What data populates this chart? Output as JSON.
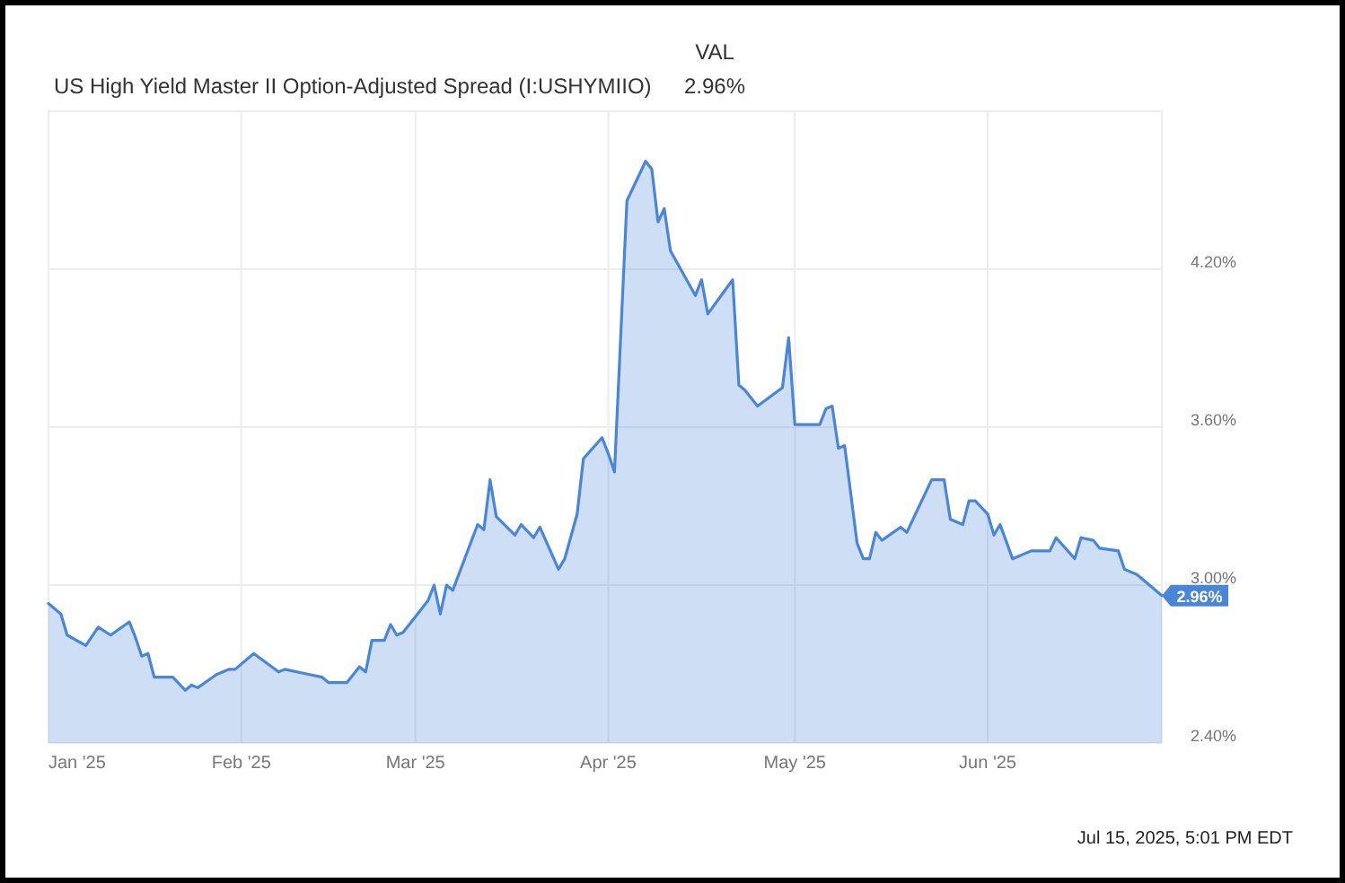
{
  "chart_data": {
    "type": "area",
    "title": "US High Yield Master II Option-Adjusted Spread (I:USHYMIIO)",
    "annotations": [
      "VAL",
      "2.96%",
      {
        "text": "2.96%",
        "x": "2025-06-29",
        "y": 2.96
      },
      "Jul 15, 2025, 5:01 PM EDT"
    ],
    "x": [
      "2025-01-01",
      "2025-01-03",
      "2025-01-04",
      "2025-01-07",
      "2025-01-09",
      "2025-01-11",
      "2025-01-14",
      "2025-01-15",
      "2025-01-16",
      "2025-01-17",
      "2025-01-18",
      "2025-01-21",
      "2025-01-23",
      "2025-01-24",
      "2025-01-25",
      "2025-01-28",
      "2025-01-30",
      "2025-01-31",
      "2025-02-03",
      "2025-02-07",
      "2025-02-08",
      "2025-02-12",
      "2025-02-14",
      "2025-02-15",
      "2025-02-18",
      "2025-02-20",
      "2025-02-21",
      "2025-02-22",
      "2025-02-24",
      "2025-02-25",
      "2025-02-26",
      "2025-02-27",
      "2025-03-01",
      "2025-03-03",
      "2025-03-04",
      "2025-03-05",
      "2025-03-06",
      "2025-03-07",
      "2025-03-11",
      "2025-03-12",
      "2025-03-13",
      "2025-03-14",
      "2025-03-17",
      "2025-03-18",
      "2025-03-20",
      "2025-03-21",
      "2025-03-24",
      "2025-03-25",
      "2025-03-27",
      "2025-03-28",
      "2025-03-31",
      "2025-04-01",
      "2025-04-02",
      "2025-04-04",
      "2025-04-07",
      "2025-04-08",
      "2025-04-09",
      "2025-04-10",
      "2025-04-11",
      "2025-04-15",
      "2025-04-16",
      "2025-04-17",
      "2025-04-21",
      "2025-04-22",
      "2025-04-23",
      "2025-04-25",
      "2025-04-29",
      "2025-04-30",
      "2025-05-01",
      "2025-05-05",
      "2025-05-06",
      "2025-05-07",
      "2025-05-08",
      "2025-05-09",
      "2025-05-11",
      "2025-05-12",
      "2025-05-13",
      "2025-05-14",
      "2025-05-15",
      "2025-05-18",
      "2025-05-19",
      "2025-05-23",
      "2025-05-25",
      "2025-05-26",
      "2025-05-28",
      "2025-05-29",
      "2025-05-30",
      "2025-06-01",
      "2025-06-02",
      "2025-06-03",
      "2025-06-05",
      "2025-06-08",
      "2025-06-11",
      "2025-06-12",
      "2025-06-15",
      "2025-06-16",
      "2025-06-18",
      "2025-06-19",
      "2025-06-22",
      "2025-06-23",
      "2025-06-25",
      "2025-06-29"
    ],
    "series": [
      {
        "color": "#4a86d8",
        "values": [
          2.93,
          2.89,
          2.81,
          2.77,
          2.84,
          2.81,
          2.86,
          2.8,
          2.73,
          2.74,
          2.65,
          2.65,
          2.6,
          2.62,
          2.61,
          2.66,
          2.68,
          2.68,
          2.74,
          2.67,
          2.68,
          2.66,
          2.65,
          2.63,
          2.63,
          2.69,
          2.67,
          2.79,
          2.79,
          2.85,
          2.81,
          2.82,
          2.88,
          2.94,
          3.0,
          2.89,
          3.0,
          2.98,
          3.23,
          3.21,
          3.4,
          3.26,
          3.19,
          3.23,
          3.18,
          3.22,
          3.06,
          3.1,
          3.27,
          3.48,
          3.56,
          3.5,
          3.43,
          4.46,
          4.61,
          4.58,
          4.38,
          4.43,
          4.27,
          4.1,
          4.16,
          4.03,
          4.16,
          3.76,
          3.74,
          3.68,
          3.75,
          3.94,
          3.61,
          3.61,
          3.67,
          3.68,
          3.52,
          3.53,
          3.16,
          3.1,
          3.1,
          3.2,
          3.17,
          3.22,
          3.2,
          3.4,
          3.4,
          3.25,
          3.23,
          3.32,
          3.32,
          3.27,
          3.19,
          3.23,
          3.1,
          3.13,
          3.13,
          3.18,
          3.1,
          3.18,
          3.17,
          3.14,
          3.13,
          3.06,
          3.04,
          2.96
        ]
      }
    ],
    "xlim": [
      "2025-01-01",
      "2025-06-29"
    ],
    "xticks": [
      {
        "value": "2025-01-01",
        "label": "Jan '25"
      },
      {
        "value": "2025-02-01",
        "label": "Feb '25"
      },
      {
        "value": "2025-03-01",
        "label": "Mar '25"
      },
      {
        "value": "2025-04-01",
        "label": "Apr '25"
      },
      {
        "value": "2025-05-01",
        "label": "May '25"
      },
      {
        "value": "2025-06-01",
        "label": "Jun '25"
      }
    ],
    "ylim": [
      2.4,
      4.8
    ],
    "yticks": [
      {
        "value": 2.4,
        "label": "2.40%"
      },
      {
        "value": 3.0,
        "label": "3.00%"
      },
      {
        "value": 3.6,
        "label": "3.60%"
      },
      {
        "value": 4.2,
        "label": "4.20%"
      }
    ],
    "grid": true
  }
}
